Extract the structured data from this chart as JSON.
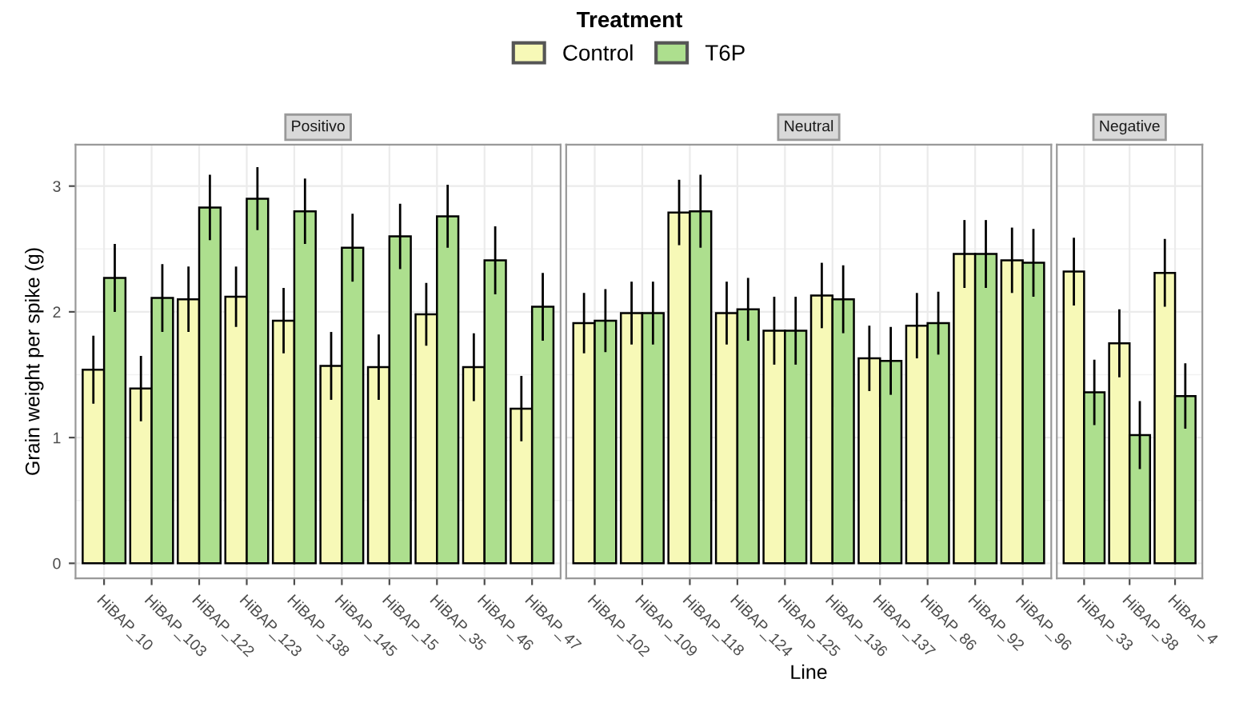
{
  "chart_data": [
    {
      "type": "bar",
      "title": "Positivo",
      "ylabel": "Grain weight per spike (g)",
      "legend_title": "Treatment",
      "legend": "top",
      "categories": [
        "HiBAP_10",
        "HiBAP_103",
        "HiBAP_122",
        "HiBAP_123",
        "HiBAP_138",
        "HiBAP_145",
        "HiBAP_15",
        "HiBAP_35",
        "HiBAP_46",
        "HiBAP_47"
      ],
      "series": [
        {
          "name": "Control",
          "color": "#f7f9b7",
          "values": [
            1.54,
            1.39,
            2.1,
            2.12,
            1.93,
            1.57,
            1.56,
            1.98,
            1.56,
            1.23
          ],
          "errors": [
            0.27,
            0.26,
            0.26,
            0.24,
            0.26,
            0.27,
            0.26,
            0.25,
            0.27,
            0.26
          ]
        },
        {
          "name": "T6P",
          "color": "#addf8e",
          "values": [
            2.27,
            2.11,
            2.83,
            2.9,
            2.8,
            2.51,
            2.6,
            2.76,
            2.41,
            2.04
          ],
          "errors": [
            0.27,
            0.27,
            0.26,
            0.25,
            0.26,
            0.27,
            0.26,
            0.25,
            0.27,
            0.27
          ]
        }
      ],
      "ylim": [
        -0.12,
        3.33
      ],
      "yticks": [
        0,
        1,
        2,
        3
      ],
      "grid": true
    },
    {
      "type": "bar",
      "title": "Neutral",
      "xlabel": "Line",
      "tick_labels": "x",
      "categories": [
        "HiBAP_102",
        "HiBAP_109",
        "HiBAP_118",
        "HiBAP_124",
        "HiBAP_125",
        "HiBAP_136",
        "HiBAP_137",
        "HiBAP_86",
        "HiBAP_92",
        "HiBAP_96"
      ],
      "series": [
        {
          "color": "#f7f9b7",
          "values": [
            1.91,
            1.99,
            2.79,
            1.99,
            1.85,
            2.13,
            1.63,
            1.89,
            2.46,
            2.41
          ],
          "errors": [
            0.24,
            0.25,
            0.26,
            0.25,
            0.27,
            0.26,
            0.26,
            0.26,
            0.27,
            0.26
          ]
        },
        {
          "color": "#addf8e",
          "values": [
            1.93,
            1.99,
            2.8,
            2.02,
            1.85,
            2.1,
            1.61,
            1.91,
            2.46,
            2.39
          ],
          "errors": [
            0.25,
            0.25,
            0.29,
            0.25,
            0.27,
            0.27,
            0.27,
            0.25,
            0.27,
            0.27
          ]
        }
      ],
      "ylim": [
        -0.12,
        3.33
      ],
      "yticks": [
        0,
        1,
        2,
        3
      ],
      "grid": true
    },
    {
      "type": "bar",
      "title": "Negative",
      "tick_labels": "x",
      "categories": [
        "HiBAP_33",
        "HiBAP_38",
        "HiBAP_4"
      ],
      "series": [
        {
          "color": "#f7f9b7",
          "values": [
            2.32,
            1.75,
            2.31
          ],
          "errors": [
            0.27,
            0.27,
            0.27
          ]
        },
        {
          "color": "#addf8e",
          "values": [
            1.36,
            1.02,
            1.33
          ],
          "errors": [
            0.26,
            0.27,
            0.26
          ]
        }
      ],
      "ylim": [
        -0.12,
        3.33
      ],
      "yticks": [
        0,
        1,
        2,
        3
      ],
      "grid": true
    }
  ]
}
